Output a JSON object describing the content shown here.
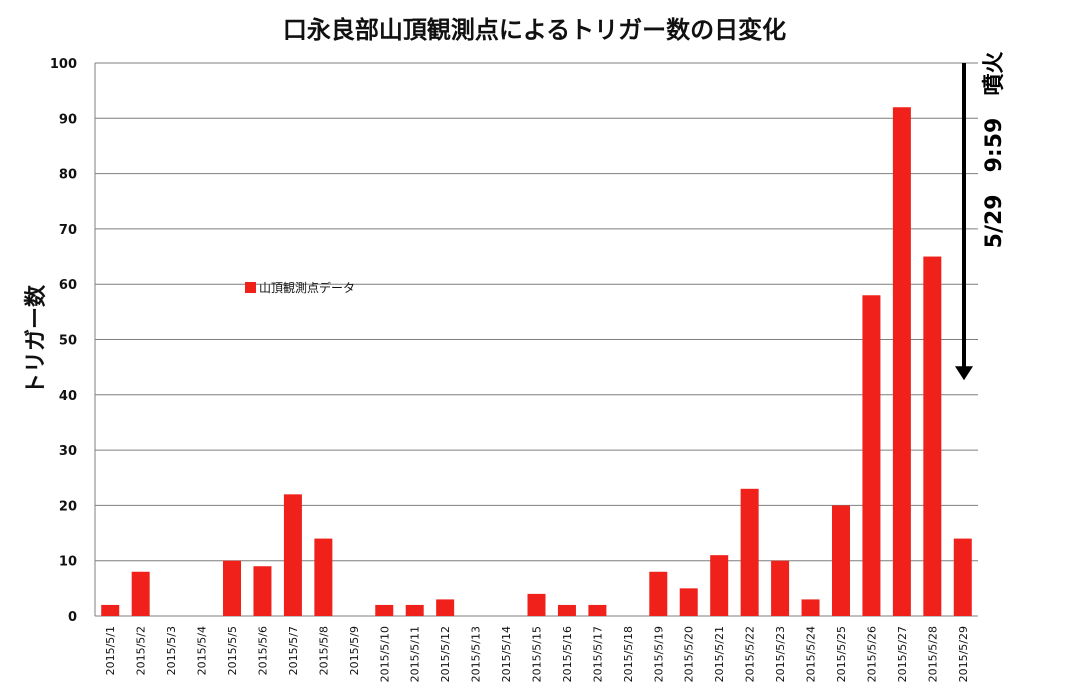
{
  "chart_data": {
    "type": "bar",
    "title": "口永良部山頂観測点によるトリガー数の日変化",
    "xlabel": "",
    "ylabel": "トリガー数",
    "ylim": [
      0,
      100
    ],
    "yticks": [
      0,
      10,
      20,
      30,
      40,
      50,
      60,
      70,
      80,
      90,
      100
    ],
    "grid": true,
    "legend_placement": "left-middle",
    "categories": [
      "2015/5/1",
      "2015/5/2",
      "2015/5/3",
      "2015/5/4",
      "2015/5/5",
      "2015/5/6",
      "2015/5/7",
      "2015/5/8",
      "2015/5/9",
      "2015/5/10",
      "2015/5/11",
      "2015/5/12",
      "2015/5/13",
      "2015/5/14",
      "2015/5/15",
      "2015/5/16",
      "2015/5/17",
      "2015/5/18",
      "2015/5/19",
      "2015/5/20",
      "2015/5/21",
      "2015/5/22",
      "2015/5/23",
      "2015/5/24",
      "2015/5/25",
      "2015/5/26",
      "2015/5/27",
      "2015/5/28",
      "2015/5/29"
    ],
    "series": [
      {
        "name": "山頂観測点データ",
        "color": "#f0211b",
        "values": [
          2,
          8,
          0,
          0,
          10,
          9,
          22,
          14,
          0,
          2,
          2,
          3,
          0,
          0,
          4,
          2,
          2,
          0,
          8,
          5,
          11,
          23,
          10,
          3,
          20,
          58,
          92,
          65,
          14
        ]
      }
    ],
    "annotation": {
      "text": "5/29　9:59　噴火",
      "arrow_from_y": 100,
      "arrow_to_y": 43
    }
  }
}
